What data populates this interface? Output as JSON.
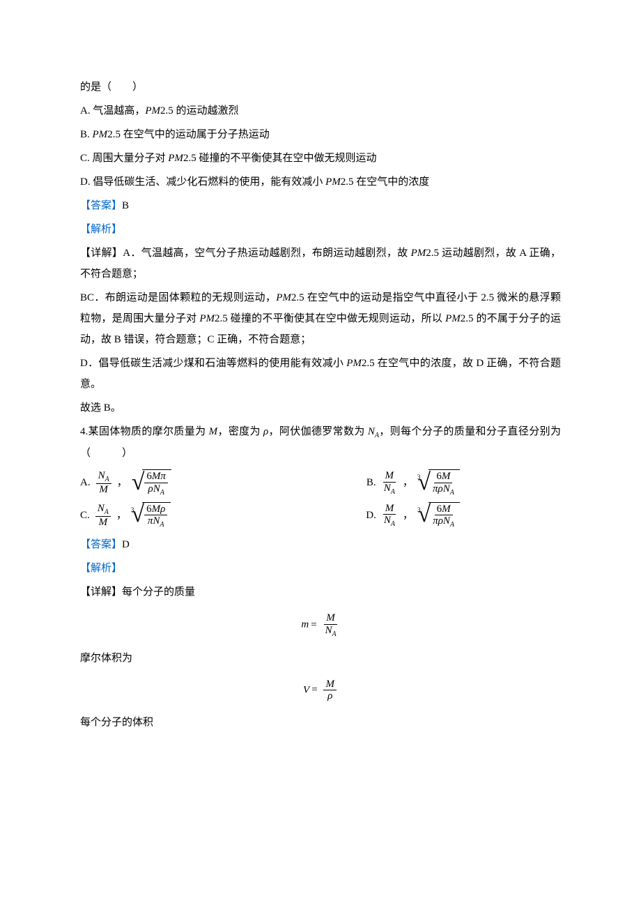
{
  "q3": {
    "stem_tail": "的是（　　）",
    "optA": "A. 气温越高，",
    "optA_2": "2.5 的运动越激烈",
    "optB": "B. ",
    "optB_2": "2.5 在空气中的运动属于分子热运动",
    "optC": "C. 周围大量分子对 ",
    "optC_2": "2.5 碰撞的不平衡使其在空中做无规则运动",
    "optD": "D. 倡导低碳生活、减少化石燃料的使用，能有效减小 ",
    "optD_2": "2.5 在空气中的浓度",
    "answer_label": "【答案】",
    "answer_value": "B",
    "analysis_label": "【解析】",
    "detail_a_pre": "【详解】A．气温越高，空气分子热运动越剧烈，布朗运动越剧烈，故 ",
    "detail_a_post": "2.5 运动越剧烈，故 A 正确，不符合题意；",
    "detail_bc_pre": "BC．布朗运动是固体颗粒的无规则运动，",
    "detail_bc_mid1": "2.5 在空气中的运动是指空气中直径小于 2.5 微米的悬浮颗粒物，是周围大量分子对 ",
    "detail_bc_mid2": "2.5 碰撞的不平衡使其在空中做无规则运动，所以 ",
    "detail_bc_post": "2.5 的不属于分子的运动，故 B 错误，符合题意；C 正确，不符合题意；",
    "detail_d_pre": "D．倡导低碳生活减少煤和石油等燃料的使用能有效减小 ",
    "detail_d_post": "2.5 在空气中的浓度，故 D 正确，不符合题意。",
    "conclusion": "故选 B。",
    "pm_label": "PM"
  },
  "q4": {
    "stem_1": "4.某固体物质的摩尔质量为 ",
    "stem_2": "，密度为 ",
    "stem_3": "，阿伏伽德罗常数为 ",
    "stem_4": "，则每个分子的质量和分子直径分别为（　　　）",
    "symbols": {
      "M": "M",
      "rho": "ρ",
      "NA": "N",
      "A_sub": "A",
      "pi": "π",
      "six": "6",
      "m": "m",
      "V": "V",
      "equals": "="
    },
    "opts": {
      "A": "A.",
      "B": "B.",
      "C": "C.",
      "D": "D."
    },
    "answer_label": "【答案】",
    "answer_value": "D",
    "analysis_label": "【解析】",
    "detail_label": "【详解】每个分子的质量",
    "molar_volume_label": "摩尔体积为",
    "each_volume_label": "每个分子的体积"
  },
  "style": {
    "text_color": "#000000",
    "link_color": "#0066cc",
    "background": "#ffffff",
    "font_size_pt": 11,
    "line_height": 2.0
  }
}
